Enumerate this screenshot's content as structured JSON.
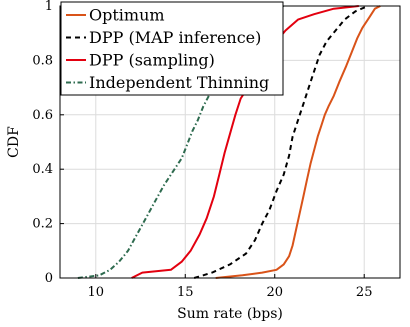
{
  "chart_data": {
    "type": "line",
    "title": "",
    "xlabel": "Sum rate (bps)",
    "ylabel": "CDF",
    "xlim": [
      8,
      27
    ],
    "ylim": [
      0,
      1
    ],
    "xticks": [
      10,
      15,
      20,
      25
    ],
    "yticks": [
      0,
      0.2,
      0.4,
      0.6,
      0.8,
      1
    ],
    "xtick_labels": [
      "10",
      "15",
      "20",
      "25"
    ],
    "ytick_labels": [
      "0",
      "0.2",
      "0.4",
      "0.6",
      "0.8",
      "1"
    ],
    "grid": true,
    "legend_position": "top-left",
    "series": [
      {
        "name": "Optimum",
        "color": "#d95319",
        "dash": "solid",
        "points": [
          [
            16.7,
            0.0
          ],
          [
            18.2,
            0.01
          ],
          [
            19.3,
            0.02
          ],
          [
            20.1,
            0.03
          ],
          [
            20.5,
            0.05
          ],
          [
            20.8,
            0.08
          ],
          [
            21.0,
            0.12
          ],
          [
            21.2,
            0.18
          ],
          [
            21.4,
            0.24
          ],
          [
            21.6,
            0.3
          ],
          [
            21.8,
            0.36
          ],
          [
            22.0,
            0.42
          ],
          [
            22.2,
            0.47
          ],
          [
            22.4,
            0.52
          ],
          [
            22.6,
            0.56
          ],
          [
            22.8,
            0.6
          ],
          [
            23.0,
            0.63
          ],
          [
            23.3,
            0.67
          ],
          [
            23.6,
            0.72
          ],
          [
            24.0,
            0.78
          ],
          [
            24.3,
            0.83
          ],
          [
            24.6,
            0.88
          ],
          [
            24.9,
            0.92
          ],
          [
            25.3,
            0.96
          ],
          [
            25.6,
            0.99
          ],
          [
            25.9,
            1.0
          ]
        ]
      },
      {
        "name": "DPP (MAP inference)",
        "color": "#000000",
        "dash": "dashed",
        "points": [
          [
            15.5,
            0.0
          ],
          [
            16.5,
            0.02
          ],
          [
            17.5,
            0.05
          ],
          [
            18.4,
            0.09
          ],
          [
            18.9,
            0.14
          ],
          [
            19.3,
            0.2
          ],
          [
            19.7,
            0.25
          ],
          [
            20.1,
            0.32
          ],
          [
            20.5,
            0.38
          ],
          [
            20.8,
            0.45
          ],
          [
            21.0,
            0.52
          ],
          [
            21.3,
            0.58
          ],
          [
            21.6,
            0.64
          ],
          [
            21.9,
            0.7
          ],
          [
            22.2,
            0.76
          ],
          [
            22.5,
            0.82
          ],
          [
            22.9,
            0.87
          ],
          [
            23.4,
            0.91
          ],
          [
            23.9,
            0.95
          ],
          [
            24.5,
            0.98
          ],
          [
            25.2,
            1.0
          ]
        ]
      },
      {
        "name": "DPP (sampling)",
        "color": "#e3000f",
        "dash": "solid",
        "points": [
          [
            12.0,
            0.0
          ],
          [
            12.6,
            0.02
          ],
          [
            14.2,
            0.03
          ],
          [
            14.8,
            0.06
          ],
          [
            15.3,
            0.1
          ],
          [
            15.8,
            0.16
          ],
          [
            16.2,
            0.22
          ],
          [
            16.6,
            0.3
          ],
          [
            16.9,
            0.38
          ],
          [
            17.2,
            0.46
          ],
          [
            17.5,
            0.53
          ],
          [
            17.8,
            0.6
          ],
          [
            18.1,
            0.66
          ],
          [
            18.5,
            0.7
          ],
          [
            18.9,
            0.75
          ],
          [
            19.3,
            0.79
          ],
          [
            19.7,
            0.83
          ],
          [
            20.1,
            0.87
          ],
          [
            20.6,
            0.91
          ],
          [
            21.3,
            0.95
          ],
          [
            22.2,
            0.97
          ],
          [
            23.3,
            0.99
          ],
          [
            24.7,
            1.0
          ]
        ]
      },
      {
        "name": "Independent Thinning",
        "color": "#2e6b4f",
        "dash": "dashdot",
        "points": [
          [
            9.0,
            0.0
          ],
          [
            10.2,
            0.01
          ],
          [
            10.8,
            0.03
          ],
          [
            11.3,
            0.06
          ],
          [
            11.8,
            0.1
          ],
          [
            12.3,
            0.16
          ],
          [
            12.8,
            0.22
          ],
          [
            13.3,
            0.28
          ],
          [
            13.8,
            0.34
          ],
          [
            14.3,
            0.39
          ],
          [
            14.8,
            0.44
          ],
          [
            15.1,
            0.49
          ],
          [
            15.4,
            0.54
          ],
          [
            15.7,
            0.58
          ],
          [
            16.0,
            0.63
          ],
          [
            16.4,
            0.68
          ],
          [
            16.8,
            0.73
          ],
          [
            17.3,
            0.79
          ],
          [
            17.8,
            0.85
          ],
          [
            18.4,
            0.91
          ],
          [
            19.0,
            0.96
          ],
          [
            19.7,
            0.99
          ],
          [
            20.5,
            1.0
          ]
        ]
      }
    ]
  }
}
